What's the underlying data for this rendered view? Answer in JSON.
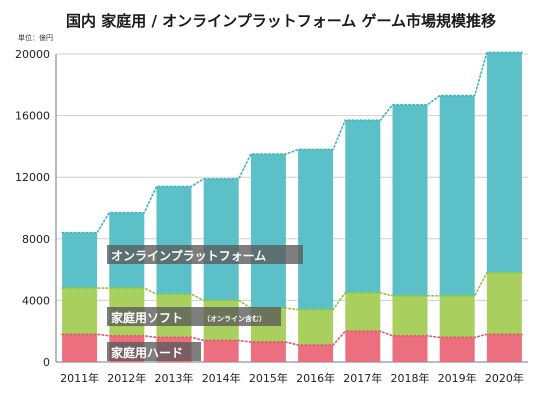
{
  "title": "国内 家庭用 / オンラインプラットフォーム ゲーム市場規模推移",
  "unit_label": "単位：億円",
  "colors": {
    "hardware": "#ec6f7f",
    "software": "#a9d05e",
    "online": "#5bc0c8",
    "hardware_line": "#e8536a",
    "software_line": "#8cc63f",
    "online_line": "#3fb3be"
  },
  "chart_data": {
    "type": "bar",
    "stacked": true,
    "categories": [
      "2011年",
      "2012年",
      "2013年",
      "2014年",
      "2015年",
      "2016年",
      "2017年",
      "2018年",
      "2019年",
      "2020年"
    ],
    "series": [
      {
        "name": "家庭用ハード",
        "values": [
          1800,
          1700,
          1600,
          1400,
          1300,
          1100,
          2000,
          1700,
          1600,
          1800
        ]
      },
      {
        "name": "家庭用ソフト",
        "name_note": "（オンライン含む）",
        "values": [
          3000,
          3100,
          2800,
          2600,
          2200,
          2300,
          2500,
          2600,
          2700,
          4000
        ]
      },
      {
        "name": "オンラインプラットフォーム",
        "values": [
          3600,
          4900,
          7000,
          7900,
          10000,
          10400,
          11200,
          12400,
          13000,
          14300
        ]
      }
    ],
    "yticks": [
      0,
      4000,
      8000,
      12000,
      16000,
      20000
    ],
    "ylim": [
      0,
      20000
    ],
    "grid": true,
    "legend": "inline labels on bars",
    "connector_lines": "dotted"
  }
}
